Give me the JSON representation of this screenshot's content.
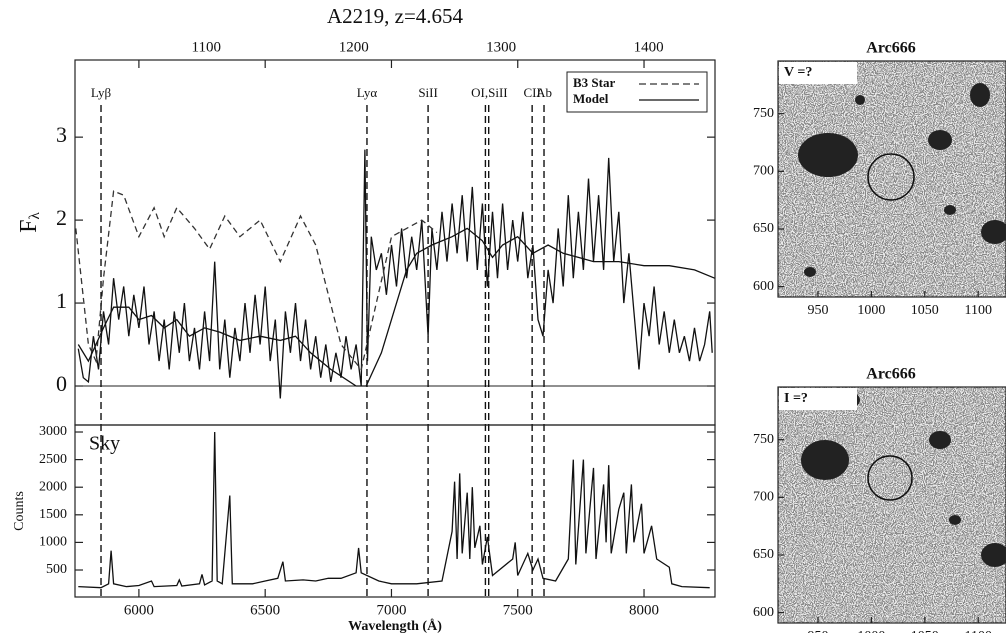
{
  "chart_data": [
    {
      "type": "line",
      "title": "A2219, z=4.654",
      "y_label": "F",
      "y_label_sub": "λ",
      "xlim": [
        5747,
        8281
      ],
      "ylim": [
        -0.47,
        3.93
      ],
      "yticks": [
        0,
        1,
        2,
        3
      ],
      "x2lim": [
        1011,
        1445
      ],
      "x2ticks": [
        1100,
        1200,
        1300,
        1400
      ],
      "legend": "upper right",
      "series": [
        {
          "color": "#111",
          "style": "solid",
          "x": [
            5760,
            5780,
            5800,
            5820,
            5840,
            5860,
            5880,
            5900,
            5920,
            5940,
            5960,
            5980,
            6000,
            6020,
            6040,
            6060,
            6080,
            6100,
            6120,
            6140,
            6160,
            6180,
            6200,
            6220,
            6240,
            6260,
            6280,
            6300,
            6320,
            6340,
            6360,
            6380,
            6400,
            6420,
            6440,
            6460,
            6480,
            6500,
            6520,
            6540,
            6560,
            6580,
            6600,
            6620,
            6640,
            6660,
            6680,
            6700,
            6720,
            6740,
            6760,
            6780,
            6800,
            6820,
            6840,
            6860,
            6880,
            6895,
            6905,
            6920,
            6940,
            6960,
            6980,
            7000,
            7020,
            7040,
            7060,
            7080,
            7100,
            7120,
            7145,
            7160,
            7180,
            7200,
            7220,
            7240,
            7260,
            7280,
            7300,
            7320,
            7340,
            7360,
            7380,
            7400,
            7420,
            7440,
            7460,
            7480,
            7500,
            7520,
            7540,
            7560,
            7580,
            7600,
            7620,
            7640,
            7660,
            7680,
            7700,
            7720,
            7740,
            7760,
            7780,
            7800,
            7820,
            7840,
            7860,
            7880,
            7900,
            7920,
            7940,
            7960,
            7980,
            8000,
            8020,
            8040,
            8060,
            8080,
            8100,
            8120,
            8140,
            8160,
            8180,
            8200,
            8220,
            8240,
            8260,
            8270
          ],
          "values": [
            0.45,
            0.1,
            0.05,
            0.6,
            0.2,
            0.9,
            0.5,
            1.3,
            0.8,
            1.2,
            0.6,
            1.1,
            0.7,
            1.2,
            0.5,
            0.9,
            0.3,
            0.8,
            0.2,
            0.9,
            0.4,
            1.0,
            0.3,
            0.7,
            0.2,
            0.9,
            0.3,
            1.5,
            0.2,
            0.8,
            0.1,
            0.7,
            0.3,
            1.0,
            0.4,
            1.1,
            0.5,
            1.2,
            0.3,
            0.8,
            -0.15,
            0.9,
            0.4,
            1.0,
            0.3,
            0.8,
            0.2,
            0.6,
            0.1,
            0.5,
            0.05,
            0.4,
            0.1,
            0.6,
            0.2,
            0.5,
            0.0,
            2.85,
            0.3,
            1.8,
            1.4,
            1.6,
            1.1,
            1.7,
            1.2,
            1.9,
            1.3,
            1.8,
            1.4,
            2.0,
            0.6,
            1.9,
            1.4,
            2.1,
            1.5,
            2.2,
            1.6,
            2.3,
            1.5,
            2.4,
            1.4,
            2.2,
            1.2,
            2.1,
            1.3,
            2.2,
            1.4,
            2.0,
            1.5,
            2.1,
            1.3,
            1.7,
            0.8,
            0.6,
            1.4,
            1.0,
            1.9,
            1.2,
            2.3,
            1.3,
            2.1,
            1.4,
            2.5,
            1.5,
            2.3,
            1.4,
            2.75,
            1.5,
            2.1,
            1.0,
            1.6,
            0.9,
            0.2,
            1.0,
            0.6,
            1.2,
            0.5,
            0.9,
            0.4,
            0.8,
            0.4,
            0.6,
            0.3,
            0.7,
            0.3,
            0.5,
            0.9,
            0.4
          ]
        },
        {
          "name": "B3 Star",
          "color": "#333",
          "style": "dashed",
          "x": [
            5750,
            5800,
            5830,
            5860,
            5900,
            5940,
            6000,
            6060,
            6100,
            6150,
            6220,
            6280,
            6340,
            6400,
            6480,
            6560,
            6640,
            6700,
            6800,
            6880,
            6940,
            7000,
            7060,
            7120,
            7180
          ],
          "values": [
            1.9,
            0.5,
            0.3,
            1.3,
            2.35,
            2.3,
            1.8,
            2.15,
            1.8,
            2.15,
            1.9,
            1.65,
            2.05,
            1.8,
            2.0,
            1.5,
            2.05,
            1.7,
            0.5,
            0.2,
            1.0,
            1.8,
            1.9,
            2.0,
            1.85
          ]
        },
        {
          "name": "Model",
          "color": "#111",
          "style": "solid",
          "x": [
            5760,
            5800,
            5860,
            5900,
            5960,
            6000,
            6050,
            6100,
            6150,
            6200,
            6260,
            6320,
            6400,
            6480,
            6560,
            6620,
            6680,
            6760,
            6860,
            6900,
            6960,
            7020,
            7060,
            7100,
            7160,
            7240,
            7300,
            7360,
            7400,
            7440,
            7500,
            7560,
            7620,
            7680,
            7740,
            7800,
            7900,
            8000,
            8100,
            8200,
            8280
          ],
          "values": [
            0.5,
            0.3,
            0.7,
            0.95,
            0.95,
            0.8,
            0.85,
            0.7,
            0.8,
            0.6,
            0.7,
            0.65,
            0.55,
            0.6,
            0.55,
            0.6,
            0.4,
            0.2,
            0.0,
            0.0,
            0.4,
            1.0,
            1.4,
            1.6,
            1.7,
            1.8,
            1.9,
            1.75,
            1.55,
            1.7,
            1.8,
            1.6,
            1.7,
            1.6,
            1.55,
            1.5,
            1.5,
            1.45,
            1.45,
            1.4,
            1.3
          ]
        }
      ],
      "annotations": [
        {
          "label": "Lyβ",
          "x": [
            5850
          ]
        },
        {
          "label": "Lyα",
          "x": [
            6903
          ]
        },
        {
          "label": "SiII",
          "x": [
            7145
          ]
        },
        {
          "label": "OI,SiII",
          "x": [
            7372,
            7385
          ]
        },
        {
          "label": "CII",
          "x": [
            7557
          ]
        },
        {
          "label": "Ab",
          "x": [
            7604
          ]
        }
      ]
    },
    {
      "type": "line",
      "panel_label": "Sky",
      "y_label": "Counts",
      "x_label": "Wavelength (Å)",
      "xlim": [
        5747,
        8281
      ],
      "xticks": [
        6000,
        6500,
        7000,
        7500,
        8000
      ],
      "ylim": [
        11,
        3127
      ],
      "yticks": [
        500,
        1000,
        1500,
        2000,
        2500,
        3000
      ],
      "series": [
        {
          "color": "#111",
          "style": "solid",
          "x": [
            5760,
            5850,
            5880,
            5890,
            5900,
            5950,
            6000,
            6050,
            6060,
            6150,
            6160,
            6170,
            6240,
            6250,
            6260,
            6290,
            6300,
            6310,
            6330,
            6360,
            6370,
            6450,
            6500,
            6550,
            6570,
            6580,
            6650,
            6700,
            6750,
            6800,
            6860,
            6870,
            6880,
            6950,
            7000,
            7100,
            7200,
            7240,
            7250,
            7260,
            7270,
            7280,
            7300,
            7310,
            7320,
            7330,
            7350,
            7360,
            7380,
            7400,
            7480,
            7490,
            7500,
            7540,
            7560,
            7580,
            7600,
            7650,
            7700,
            7720,
            7730,
            7760,
            7770,
            7800,
            7810,
            7840,
            7850,
            7860,
            7870,
            7900,
            7920,
            7930,
            7950,
            7960,
            7990,
            8000,
            8030,
            8050,
            8100,
            8110,
            8150,
            8260
          ],
          "values": [
            200,
            180,
            250,
            850,
            250,
            200,
            220,
            300,
            200,
            220,
            320,
            210,
            250,
            420,
            230,
            300,
            3000,
            300,
            250,
            1850,
            250,
            250,
            300,
            350,
            650,
            300,
            320,
            300,
            350,
            350,
            450,
            900,
            450,
            300,
            250,
            250,
            300,
            1200,
            2100,
            700,
            2250,
            800,
            1900,
            700,
            2000,
            900,
            1300,
            600,
            1100,
            400,
            700,
            1000,
            400,
            800,
            500,
            700,
            350,
            300,
            700,
            2500,
            600,
            2500,
            800,
            2350,
            700,
            2050,
            1000,
            2400,
            800,
            1600,
            1900,
            800,
            2050,
            1000,
            1700,
            800,
            1300,
            700,
            550,
            250,
            200,
            180
          ]
        }
      ]
    },
    {
      "type": "image",
      "title": "Arc666",
      "band_label": "V =?",
      "xlim": [
        912.6,
        1126
      ],
      "xticks": [
        950,
        1000,
        1050,
        1100
      ],
      "ylim": [
        591,
        795.7
      ],
      "yticks": [
        600,
        650,
        700,
        750
      ]
    },
    {
      "type": "image",
      "title": "Arc666",
      "band_label": "I =?",
      "xlim": [
        912.6,
        1126
      ],
      "xticks": [
        950,
        1000,
        1050,
        1100
      ],
      "ylim": [
        591,
        795.7
      ],
      "yticks": [
        600,
        650,
        700,
        750
      ]
    }
  ]
}
